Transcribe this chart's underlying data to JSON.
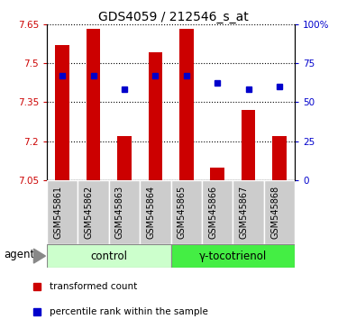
{
  "title": "GDS4059 / 212546_s_at",
  "samples": [
    "GSM545861",
    "GSM545862",
    "GSM545863",
    "GSM545864",
    "GSM545865",
    "GSM545866",
    "GSM545867",
    "GSM545868"
  ],
  "red_values": [
    7.57,
    7.63,
    7.22,
    7.54,
    7.63,
    7.1,
    7.32,
    7.22
  ],
  "blue_percentiles": [
    67,
    67,
    58,
    67,
    67,
    62,
    58,
    60
  ],
  "ymin": 7.05,
  "ymax": 7.65,
  "yticks": [
    7.05,
    7.2,
    7.35,
    7.5,
    7.65
  ],
  "ytick_labels": [
    "7.05",
    "7.2",
    "7.35",
    "7.5",
    "7.65"
  ],
  "right_yticks": [
    0,
    25,
    50,
    75,
    100
  ],
  "right_ytick_labels": [
    "0",
    "25",
    "50",
    "75",
    "100%"
  ],
  "group1_label": "control",
  "group2_label": "γ-tocotrienol",
  "group1_indices": [
    0,
    1,
    2,
    3
  ],
  "group2_indices": [
    4,
    5,
    6,
    7
  ],
  "agent_label": "agent",
  "legend1": "transformed count",
  "legend2": "percentile rank within the sample",
  "bar_color": "#cc0000",
  "dot_color": "#0000cc",
  "bar_baseline": 7.05,
  "bar_width": 0.45,
  "group1_bg": "#ccffcc",
  "group2_bg": "#44ee44",
  "sample_bg": "#cccccc",
  "plot_bg": "#ffffff",
  "left_label_color": "#cc0000",
  "right_label_color": "#0000cc",
  "title_fontsize": 10,
  "tick_fontsize": 7.5,
  "label_fontsize": 7,
  "group_fontsize": 8.5
}
